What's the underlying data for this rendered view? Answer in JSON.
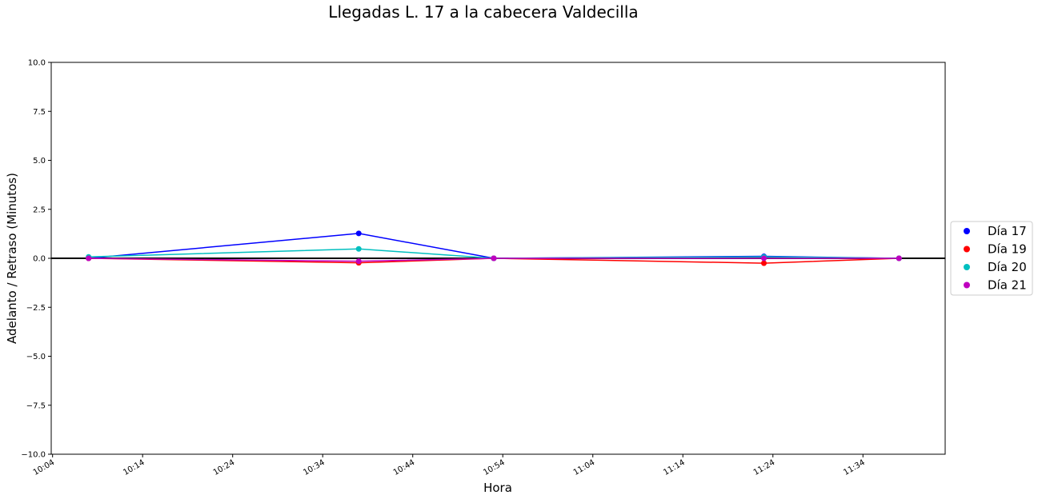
{
  "chart_data": {
    "type": "line",
    "title": "Llegadas L. 17 a la cabecera Valdecilla",
    "xlabel": "Hora",
    "ylabel": "Adelanto / Retraso (Minutos)",
    "xlim": [
      "10:04",
      "11:43"
    ],
    "ylim": [
      -10,
      10
    ],
    "x_ticks": [
      "10:04",
      "10:14",
      "10:24",
      "10:34",
      "10:44",
      "10:54",
      "11:04",
      "11:14",
      "11:24",
      "11:34"
    ],
    "y_ticks": [
      "10.0",
      "7.5",
      "5.0",
      "2.5",
      "0.0",
      "−2.5",
      "−5.0",
      "−7.5",
      "−10.0"
    ],
    "x": [
      "10:08",
      "10:38",
      "10:53",
      "11:23",
      "11:38"
    ],
    "series": [
      {
        "name": "Día 17",
        "color": "#0000ff",
        "values": [
          0.0,
          1.27,
          0.0,
          0.1,
          0.0
        ]
      },
      {
        "name": "Día 19",
        "color": "#ff0000",
        "values": [
          0.0,
          -0.23,
          0.0,
          -0.25,
          0.0
        ]
      },
      {
        "name": "Día 20",
        "color": "#00bfbf",
        "values": [
          0.07,
          0.48,
          0.0,
          0.07,
          0.0
        ]
      },
      {
        "name": "Día 21",
        "color": "#bf00bf",
        "values": [
          0.0,
          -0.15,
          0.0,
          0.0,
          0.0
        ]
      }
    ],
    "reference_line": {
      "y": 0,
      "color": "#000000"
    },
    "legend": "right",
    "grid": false
  }
}
